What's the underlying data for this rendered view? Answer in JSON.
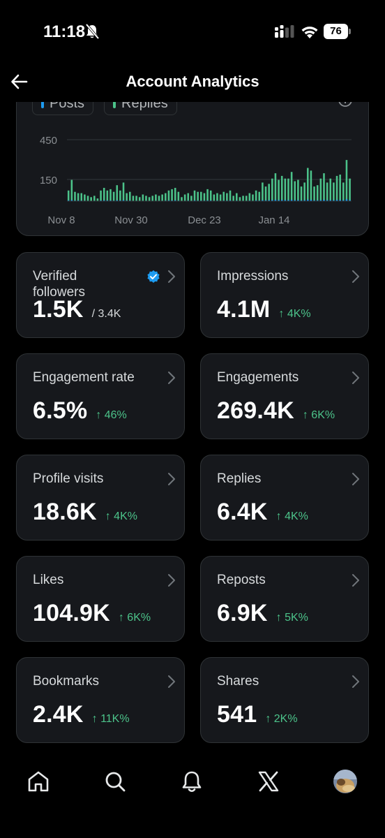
{
  "status_bar": {
    "time": "11:18",
    "battery": "76"
  },
  "header": {
    "title": "Account Analytics"
  },
  "chart_data": {
    "type": "bar",
    "legend": [
      {
        "name": "Posts",
        "color": "#1d9bf0"
      },
      {
        "name": "Replies",
        "color": "#4cc38a"
      }
    ],
    "y_ticks": [
      "450",
      "150"
    ],
    "y_tick_values": [
      450,
      150
    ],
    "x_ticks": [
      "Nov 8",
      "Nov 30",
      "Dec 23",
      "Jan 14"
    ],
    "ylim": [
      0,
      600
    ],
    "grid": true,
    "series": [
      {
        "name": "Replies",
        "color": "#4cc38a",
        "values": [
          80,
          160,
          70,
          60,
          60,
          50,
          40,
          30,
          40,
          20,
          80,
          100,
          80,
          90,
          70,
          120,
          80,
          140,
          60,
          70,
          40,
          40,
          30,
          50,
          40,
          30,
          40,
          50,
          40,
          50,
          60,
          80,
          90,
          100,
          70,
          30,
          50,
          60,
          40,
          80,
          70,
          70,
          60,
          90,
          80,
          50,
          60,
          50,
          70,
          60,
          80,
          40,
          60,
          30,
          40,
          40,
          60,
          50,
          80,
          70,
          140,
          110,
          130,
          170,
          210,
          160,
          190,
          170,
          170,
          220,
          150,
          160,
          110,
          140,
          250,
          230,
          110,
          120,
          170,
          210,
          140,
          170,
          140,
          190,
          200,
          140,
          310,
          170
        ]
      },
      {
        "name": "Posts",
        "color": "#1d9bf0",
        "values": [
          6,
          8,
          4,
          5,
          4,
          3,
          3,
          2,
          3,
          2,
          5,
          6,
          5,
          5,
          4,
          6,
          5,
          7,
          4,
          4,
          3,
          3,
          2,
          3,
          3,
          2,
          3,
          3,
          3,
          3,
          4,
          5,
          5,
          6,
          4,
          2,
          3,
          4,
          3,
          5,
          4,
          4,
          4,
          5,
          5,
          3,
          4,
          3,
          4,
          4,
          5,
          3,
          4,
          2,
          3,
          3,
          4,
          3,
          5,
          4,
          7,
          6,
          7,
          8,
          10,
          8,
          9,
          8,
          8,
          10,
          7,
          8,
          6,
          7,
          11,
          10,
          6,
          6,
          8,
          10,
          7,
          8,
          7,
          9,
          9,
          7,
          14,
          8
        ]
      }
    ]
  },
  "metrics": [
    {
      "label": "Verified followers",
      "value": "1.5K",
      "sub": "/ 3.4K",
      "verified": true
    },
    {
      "label": "Impressions",
      "value": "4.1M",
      "change": "↑ 4K%"
    },
    {
      "label": "Engagement rate",
      "value": "6.5%",
      "change": "↑ 46%"
    },
    {
      "label": "Engagements",
      "value": "269.4K",
      "change": "↑ 6K%"
    },
    {
      "label": "Profile visits",
      "value": "18.6K",
      "change": "↑ 4K%"
    },
    {
      "label": "Replies",
      "value": "6.4K",
      "change": "↑ 4K%"
    },
    {
      "label": "Likes",
      "value": "104.9K",
      "change": "↑ 6K%"
    },
    {
      "label": "Reposts",
      "value": "6.9K",
      "change": "↑ 5K%"
    },
    {
      "label": "Bookmarks",
      "value": "2.4K",
      "change": "↑ 11K%"
    },
    {
      "label": "Shares",
      "value": "541",
      "change": "↑ 2K%"
    }
  ],
  "bottom_nav": {
    "items": [
      {
        "icon": "home-icon"
      },
      {
        "icon": "search-icon"
      },
      {
        "icon": "bell-icon"
      },
      {
        "icon": "x-logo-icon"
      },
      {
        "icon": "avatar"
      }
    ]
  }
}
